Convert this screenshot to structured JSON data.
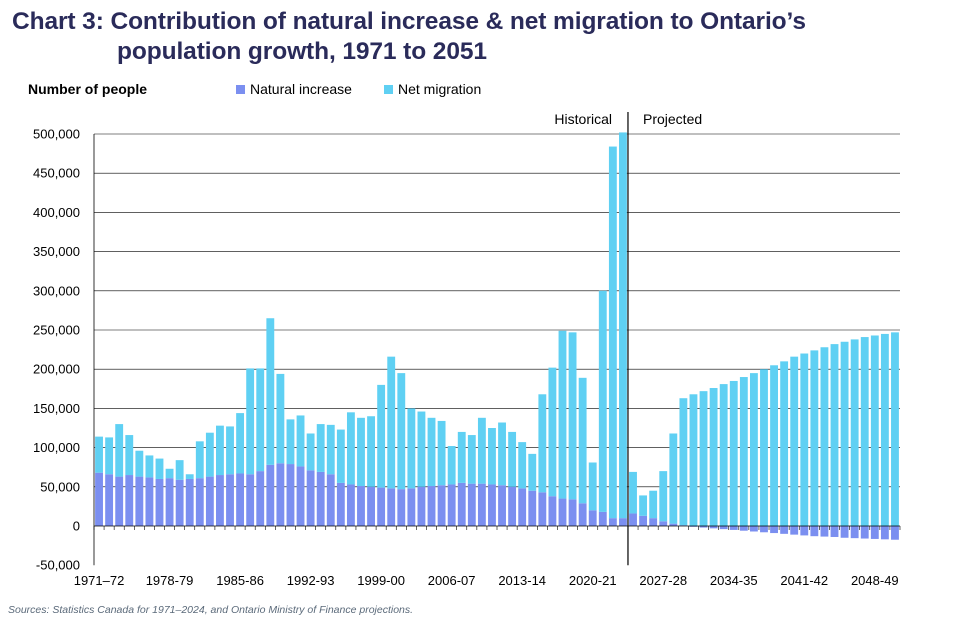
{
  "title_line1": "Chart 3: Contribution of natural increase & net migration to Ontario’s",
  "title_line2": "population growth, 1971 to 2051",
  "source": "Sources: Statistics Canada for 1971–2024, and Ontario Ministry of Finance projections.",
  "colors": {
    "natural_increase": "#7b8ff0",
    "net_migration": "#5fd0f3",
    "title": "#2a2b5a",
    "grid": "#000000"
  },
  "chart_data": {
    "type": "bar",
    "stacked": true,
    "ylabel": "Number of people",
    "ylim": [
      -50000,
      500000
    ],
    "yticks": [
      -50000,
      0,
      50000,
      100000,
      150000,
      200000,
      250000,
      300000,
      350000,
      400000,
      450000,
      500000
    ],
    "ytick_labels": [
      "-50,000",
      "0",
      "50,000",
      "100,000",
      "150,000",
      "200,000",
      "250,000",
      "300,000",
      "350,000",
      "400,000",
      "450,000",
      "500,000"
    ],
    "grid": true,
    "legend_position": "top",
    "divider_after_category": "2023-24",
    "annotations": {
      "left": "Historical",
      "right": "Projected"
    },
    "xtick_labels": [
      "1971–72",
      "1978-79",
      "1985-86",
      "1992-93",
      "1999-00",
      "2006-07",
      "2013-14",
      "2020-21",
      "2027-28",
      "2034-35",
      "2041-42",
      "2048-49"
    ],
    "categories": [
      "1971-72",
      "1972-73",
      "1973-74",
      "1974-75",
      "1975-76",
      "1976-77",
      "1977-78",
      "1978-79",
      "1979-80",
      "1980-81",
      "1981-82",
      "1982-83",
      "1983-84",
      "1984-85",
      "1985-86",
      "1986-87",
      "1987-88",
      "1988-89",
      "1989-90",
      "1990-91",
      "1991-92",
      "1992-93",
      "1993-94",
      "1994-95",
      "1995-96",
      "1996-97",
      "1997-98",
      "1998-99",
      "1999-00",
      "2000-01",
      "2001-02",
      "2002-03",
      "2003-04",
      "2004-05",
      "2005-06",
      "2006-07",
      "2007-08",
      "2008-09",
      "2009-10",
      "2010-11",
      "2011-12",
      "2012-13",
      "2013-14",
      "2014-15",
      "2015-16",
      "2016-17",
      "2017-18",
      "2018-19",
      "2019-20",
      "2020-21",
      "2021-22",
      "2022-23",
      "2023-24",
      "2024-25",
      "2025-26",
      "2026-27",
      "2027-28",
      "2028-29",
      "2029-30",
      "2030-31",
      "2031-32",
      "2032-33",
      "2033-34",
      "2034-35",
      "2035-36",
      "2036-37",
      "2037-38",
      "2038-39",
      "2039-40",
      "2040-41",
      "2041-42",
      "2042-43",
      "2043-44",
      "2044-45",
      "2045-46",
      "2046-47",
      "2047-48",
      "2048-49",
      "2049-50",
      "2050-51"
    ],
    "series": [
      {
        "name": "Natural increase",
        "values": [
          68000,
          66000,
          63000,
          65000,
          63000,
          62000,
          60000,
          61000,
          59000,
          60000,
          61000,
          63000,
          65000,
          66000,
          67000,
          66000,
          70000,
          78000,
          80000,
          79000,
          76000,
          71000,
          69000,
          66000,
          55000,
          53000,
          51000,
          50000,
          49000,
          48000,
          47000,
          48000,
          50000,
          51000,
          52000,
          53000,
          55000,
          54000,
          54000,
          53000,
          52000,
          50000,
          48000,
          45000,
          43000,
          38000,
          35000,
          34000,
          29000,
          20000,
          18000,
          10000,
          10000,
          16000,
          13000,
          10000,
          6000,
          3000,
          1000,
          -1000,
          -2000,
          -3000,
          -4000,
          -5000,
          -6000,
          -7000,
          -8000,
          -9000,
          -10000,
          -11000,
          -12000,
          -13000,
          -13500,
          -14000,
          -15000,
          -15500,
          -16000,
          -16500,
          -17000,
          -17500
        ]
      },
      {
        "name": "Net migration",
        "values": [
          46000,
          47000,
          67000,
          51000,
          33000,
          28000,
          26000,
          12000,
          25000,
          6000,
          47000,
          56000,
          63000,
          61000,
          77000,
          135000,
          131000,
          187000,
          114000,
          57000,
          65000,
          47000,
          61000,
          63000,
          68000,
          92000,
          87000,
          90000,
          131000,
          168000,
          148000,
          102000,
          96000,
          87000,
          82000,
          49000,
          65000,
          62000,
          84000,
          72000,
          80000,
          70000,
          59000,
          47000,
          125000,
          164000,
          214000,
          213000,
          160000,
          61000,
          282000,
          474000,
          492000,
          53000,
          26000,
          35000,
          64000,
          115000,
          162000,
          168000,
          172000,
          176000,
          181000,
          185000,
          190000,
          195000,
          200000,
          205000,
          210000,
          216000,
          220000,
          224000,
          228000,
          232000,
          235000,
          238000,
          241000,
          243000,
          245000,
          247000
        ]
      }
    ]
  }
}
